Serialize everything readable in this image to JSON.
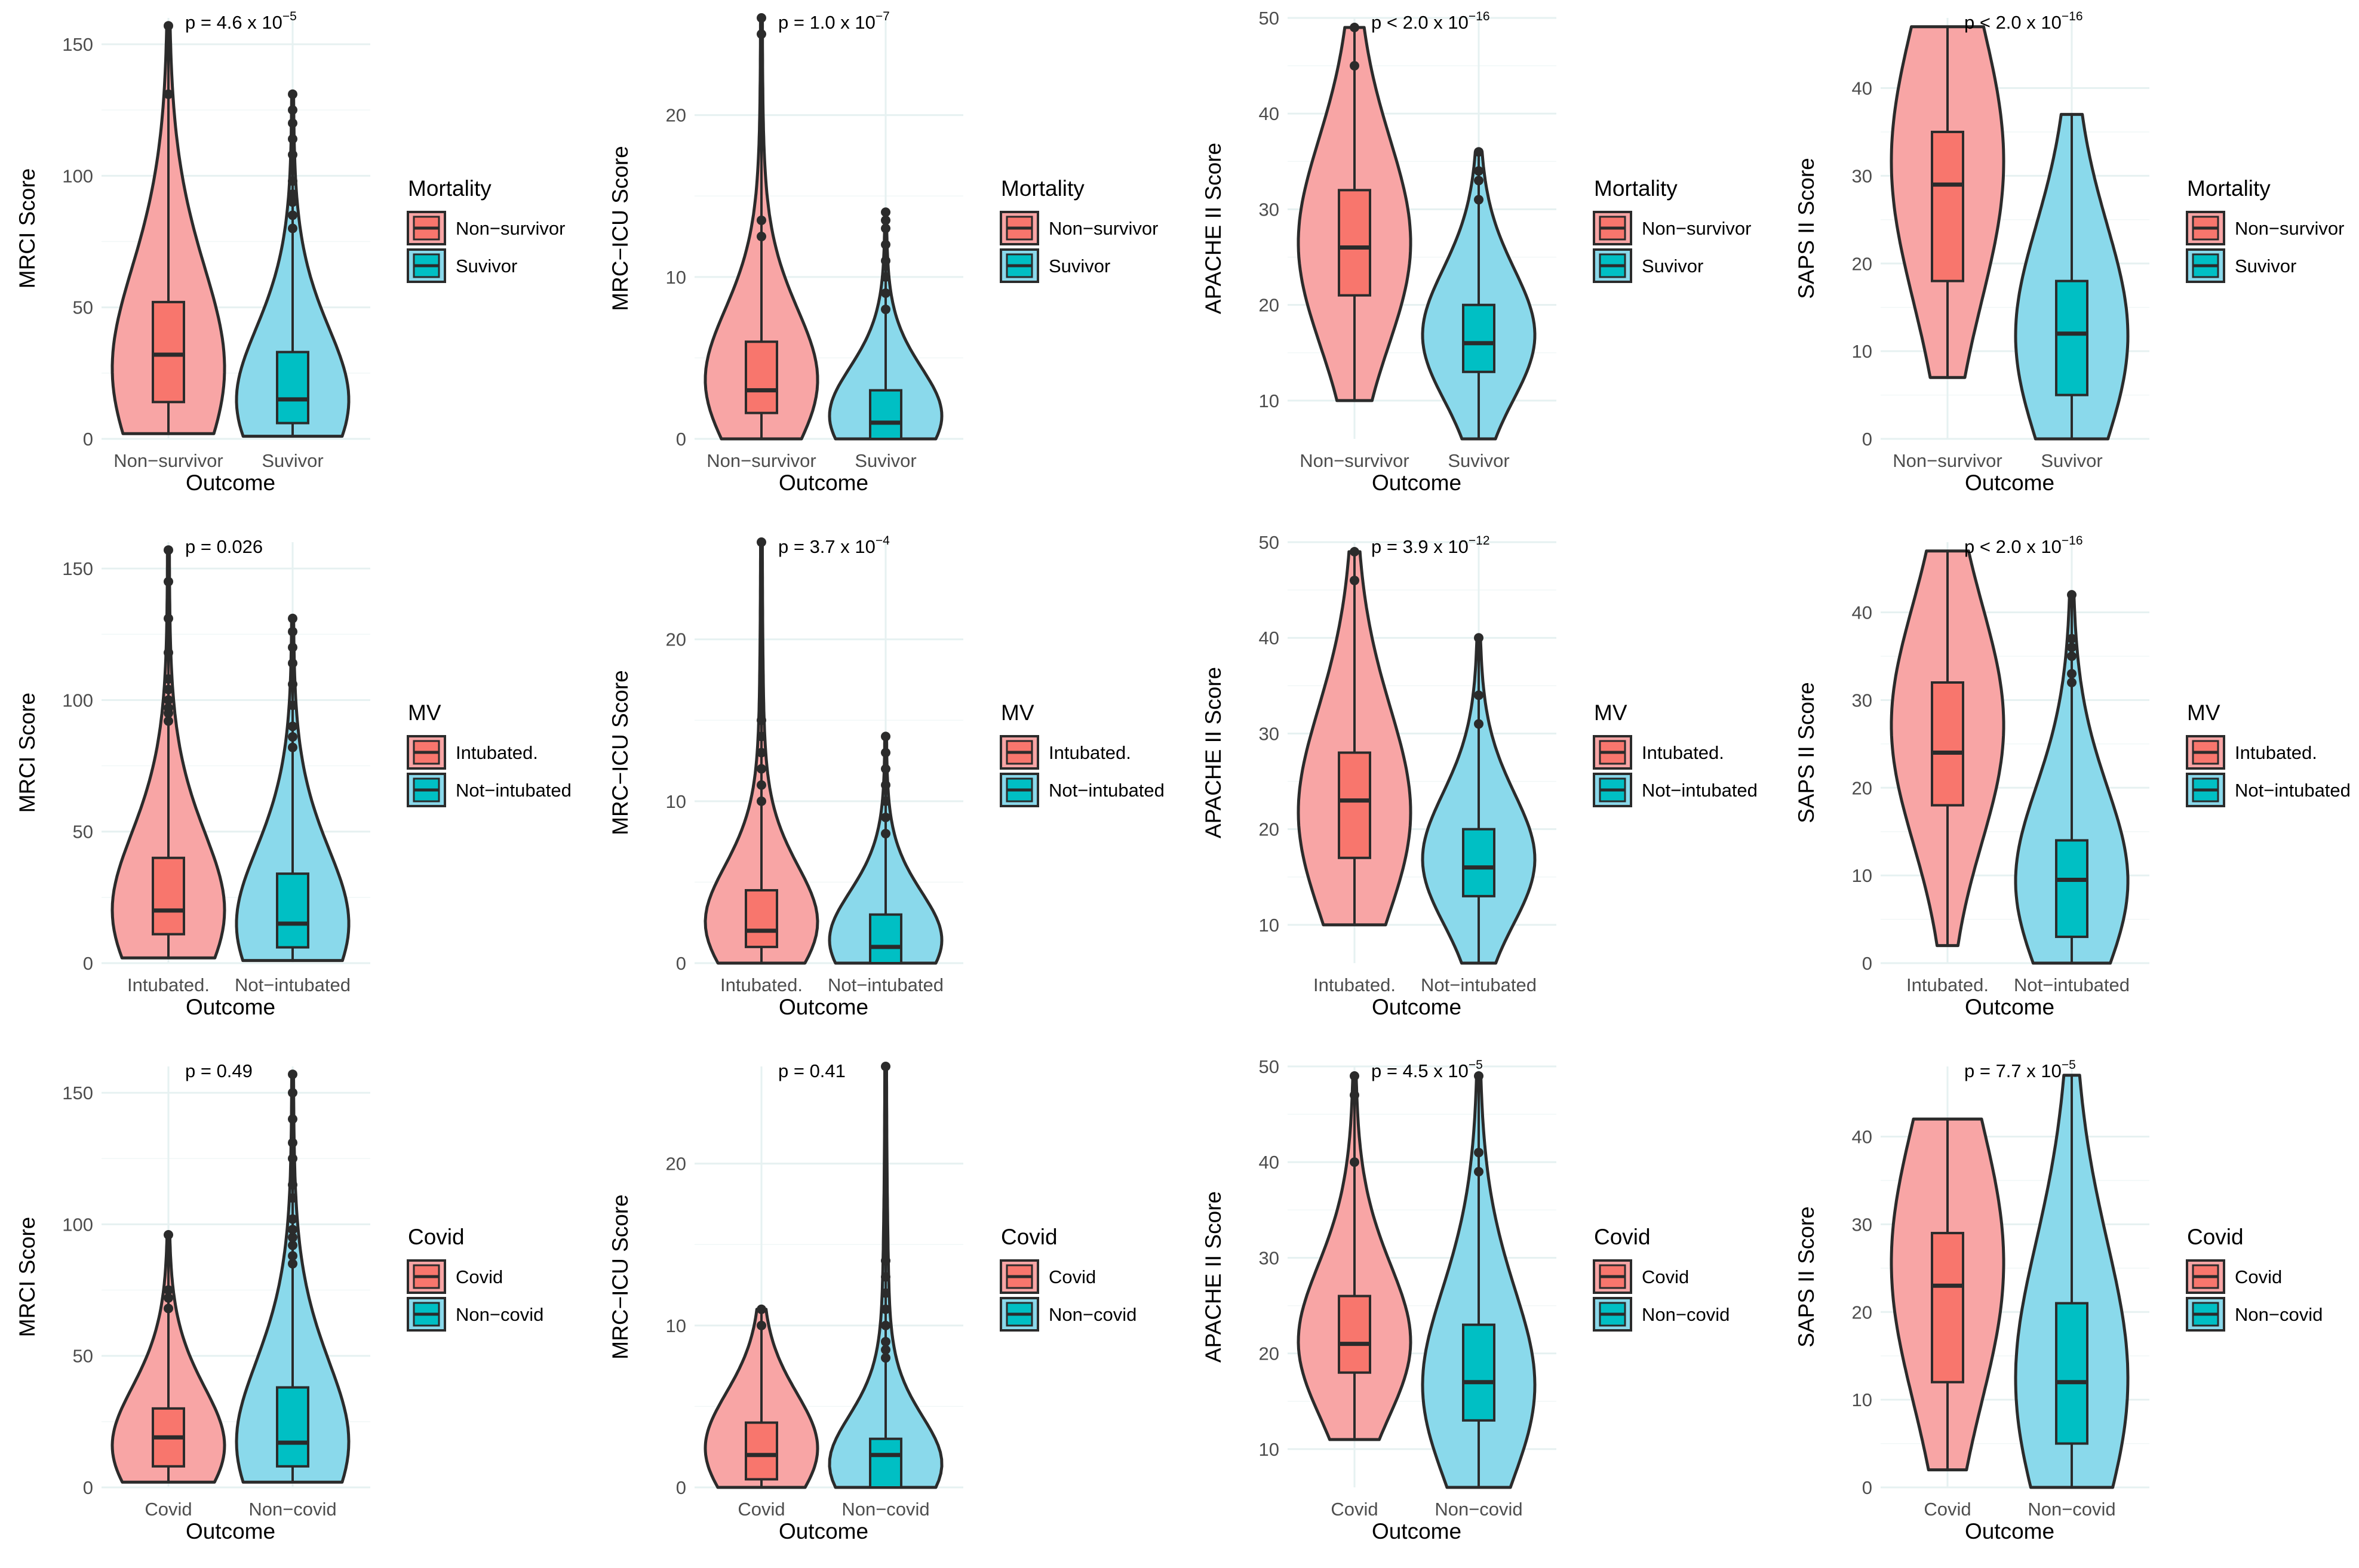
{
  "colors": {
    "group1_fill": "#f8a5a5",
    "group2_fill": "#8ad9eb",
    "group1_box": "#f8766d",
    "group2_box": "#00bfc4",
    "outline": "#2b2b2b"
  },
  "chart_data": [
    {
      "type": "violin",
      "ylabel": "MRCI Score",
      "xlabel": "Outcome",
      "categories": [
        "Non−survivor",
        "Suvivor"
      ],
      "ylim": [
        0,
        160
      ],
      "yticks": [
        "0",
        "50",
        "100",
        "150"
      ],
      "ytick_values": [
        0,
        50,
        100,
        150
      ],
      "pvalue_prefix": "p = 4.6 x 10",
      "pvalue_exponent": "−5",
      "legend_title": "Mortality",
      "legend_labels": [
        "Non−survivor",
        "Suvivor"
      ],
      "groups": [
        {
          "name": "Non−survivor",
          "min": 2,
          "q1": 14,
          "median": 32,
          "q3": 52,
          "max": 157,
          "mode": 20,
          "outliers": [
            131,
            157
          ]
        },
        {
          "name": "Suvivor",
          "min": 1,
          "q1": 6,
          "median": 15,
          "q3": 33,
          "max": 131,
          "mode": 10,
          "outliers": [
            80,
            85,
            90,
            93,
            98,
            108,
            114,
            120,
            125,
            131
          ]
        }
      ]
    },
    {
      "type": "violin",
      "ylabel": "MRC−ICU Score",
      "xlabel": "Outcome",
      "categories": [
        "Non−survivor",
        "Suvivor"
      ],
      "ylim": [
        0,
        26
      ],
      "yticks": [
        "0",
        "10",
        "20"
      ],
      "ytick_values": [
        0,
        10,
        20
      ],
      "pvalue_prefix": "p = 1.0 x 10",
      "pvalue_exponent": "−7",
      "legend_title": "Mortality",
      "legend_labels": [
        "Non−survivor",
        "Suvivor"
      ],
      "groups": [
        {
          "name": "Non−survivor",
          "min": 0,
          "q1": 1.6,
          "median": 3,
          "q3": 6,
          "max": 26,
          "mode": 3,
          "outliers": [
            12.5,
            13.5,
            25,
            26
          ]
        },
        {
          "name": "Suvivor",
          "min": 0,
          "q1": 0,
          "median": 1,
          "q3": 3,
          "max": 14,
          "mode": 1,
          "outliers": [
            8,
            9,
            10,
            11,
            12,
            13,
            13.5,
            14
          ]
        }
      ]
    },
    {
      "type": "violin",
      "ylabel": "APACHE II Score",
      "xlabel": "Outcome",
      "categories": [
        "Non−survivor",
        "Suvivor"
      ],
      "ylim": [
        6,
        50
      ],
      "yticks": [
        "10",
        "20",
        "30",
        "40",
        "50"
      ],
      "ytick_values": [
        10,
        20,
        30,
        40,
        50
      ],
      "pvalue_prefix": "p < 2.0 x 10",
      "pvalue_exponent": "−16",
      "legend_title": "Mortality",
      "legend_labels": [
        "Non−survivor",
        "Suvivor"
      ],
      "groups": [
        {
          "name": "Non−survivor",
          "min": 10,
          "q1": 21,
          "median": 26,
          "q3": 32,
          "max": 49,
          "mode": 25,
          "outliers": [
            45,
            49
          ]
        },
        {
          "name": "Suvivor",
          "min": 6,
          "q1": 13,
          "median": 16,
          "q3": 20,
          "max": 36,
          "mode": 16,
          "outliers": [
            31,
            33,
            34,
            36
          ]
        }
      ]
    },
    {
      "type": "violin",
      "ylabel": "SAPS II Score",
      "xlabel": "Outcome",
      "categories": [
        "Non−survivor",
        "Suvivor"
      ],
      "ylim": [
        0,
        48
      ],
      "yticks": [
        "0",
        "10",
        "20",
        "30",
        "40"
      ],
      "ytick_values": [
        0,
        10,
        20,
        30,
        40
      ],
      "pvalue_prefix": "p < 2.0 x 10",
      "pvalue_exponent": "−16",
      "legend_title": "Mortality",
      "legend_labels": [
        "Non−survivor",
        "Suvivor"
      ],
      "groups": [
        {
          "name": "Non−survivor",
          "min": 7,
          "q1": 18,
          "median": 29,
          "q3": 35,
          "max": 47,
          "mode": 31,
          "outliers": []
        },
        {
          "name": "Suvivor",
          "min": 0,
          "q1": 5,
          "median": 12,
          "q3": 18,
          "max": 37,
          "mode": 10,
          "outliers": []
        }
      ]
    },
    {
      "type": "violin",
      "ylabel": "MRCI Score",
      "xlabel": "Outcome",
      "categories": [
        "Intubated.",
        "Not−intubated"
      ],
      "ylim": [
        0,
        160
      ],
      "yticks": [
        "0",
        "50",
        "100",
        "150"
      ],
      "ytick_values": [
        0,
        50,
        100,
        150
      ],
      "pvalue_prefix": "p = 0.026",
      "pvalue_exponent": "",
      "legend_title": "MV",
      "legend_labels": [
        "Intubated.",
        "Not−intubated"
      ],
      "groups": [
        {
          "name": "Intubated.",
          "min": 2,
          "q1": 11,
          "median": 20,
          "q3": 40,
          "max": 157,
          "mode": 15,
          "outliers": [
            92,
            95,
            97,
            100,
            104,
            108,
            118,
            131,
            145,
            157
          ]
        },
        {
          "name": "Not−intubated",
          "min": 1,
          "q1": 6,
          "median": 15,
          "q3": 34,
          "max": 131,
          "mode": 10,
          "outliers": [
            82,
            86,
            90,
            98,
            106,
            114,
            120,
            126,
            131
          ]
        }
      ]
    },
    {
      "type": "violin",
      "ylabel": "MRC−ICU Score",
      "xlabel": "Outcome",
      "categories": [
        "Intubated.",
        "Not−intubated"
      ],
      "ylim": [
        0,
        26
      ],
      "yticks": [
        "0",
        "10",
        "20"
      ],
      "ytick_values": [
        0,
        10,
        20
      ],
      "pvalue_prefix": "p = 3.7 x 10",
      "pvalue_exponent": "−4",
      "legend_title": "MV",
      "legend_labels": [
        "Intubated.",
        "Not−intubated"
      ],
      "groups": [
        {
          "name": "Intubated.",
          "min": 0,
          "q1": 1,
          "median": 2,
          "q3": 4.5,
          "max": 26,
          "mode": 2,
          "outliers": [
            10,
            11,
            12,
            13,
            14,
            15,
            26
          ]
        },
        {
          "name": "Not−intubated",
          "min": 0,
          "q1": 0,
          "median": 1,
          "q3": 3,
          "max": 14,
          "mode": 1,
          "outliers": [
            8,
            9,
            10,
            11,
            12,
            13,
            14
          ]
        }
      ]
    },
    {
      "type": "violin",
      "ylabel": "APACHE II Score",
      "xlabel": "Outcome",
      "categories": [
        "Intubated.",
        "Not−intubated"
      ],
      "ylim": [
        6,
        50
      ],
      "yticks": [
        "10",
        "20",
        "30",
        "40",
        "50"
      ],
      "ytick_values": [
        10,
        20,
        30,
        40,
        50
      ],
      "pvalue_prefix": "p = 3.9 x 10",
      "pvalue_exponent": "−12",
      "legend_title": "MV",
      "legend_labels": [
        "Intubated.",
        "Not−intubated"
      ],
      "groups": [
        {
          "name": "Intubated.",
          "min": 10,
          "q1": 17,
          "median": 23,
          "q3": 28,
          "max": 49,
          "mode": 20,
          "outliers": [
            46,
            49
          ]
        },
        {
          "name": "Not−intubated",
          "min": 6,
          "q1": 13,
          "median": 16,
          "q3": 20,
          "max": 40,
          "mode": 16,
          "outliers": [
            31,
            34,
            40
          ]
        }
      ]
    },
    {
      "type": "violin",
      "ylabel": "SAPS II Score",
      "xlabel": "Outcome",
      "categories": [
        "Intubated.",
        "Not−intubated"
      ],
      "ylim": [
        0,
        48
      ],
      "yticks": [
        "0",
        "10",
        "20",
        "30",
        "40"
      ],
      "ytick_values": [
        0,
        10,
        20,
        30,
        40
      ],
      "pvalue_prefix": "p < 2.0 x 10",
      "pvalue_exponent": "−16",
      "legend_title": "MV",
      "legend_labels": [
        "Intubated.",
        "Not−intubated"
      ],
      "groups": [
        {
          "name": "Intubated.",
          "min": 2,
          "q1": 18,
          "median": 24,
          "q3": 32,
          "max": 47,
          "mode": 26,
          "outliers": []
        },
        {
          "name": "Not−intubated",
          "min": 0,
          "q1": 3,
          "median": 9.5,
          "q3": 14,
          "max": 42,
          "mode": 8,
          "outliers": [
            32,
            33,
            35,
            36,
            37,
            42
          ]
        }
      ]
    },
    {
      "type": "violin",
      "ylabel": "MRCI Score",
      "xlabel": "Outcome",
      "categories": [
        "Covid",
        "Non−covid"
      ],
      "ylim": [
        0,
        160
      ],
      "yticks": [
        "0",
        "50",
        "100",
        "150"
      ],
      "ytick_values": [
        0,
        50,
        100,
        150
      ],
      "pvalue_prefix": "p = 0.49",
      "pvalue_exponent": "",
      "legend_title": "Covid",
      "legend_labels": [
        "Covid",
        "Non−covid"
      ],
      "groups": [
        {
          "name": "Covid",
          "min": 2,
          "q1": 8,
          "median": 19,
          "q3": 30,
          "max": 96,
          "mode": 12,
          "outliers": [
            68,
            72,
            75,
            96
          ]
        },
        {
          "name": "Non−covid",
          "min": 2,
          "q1": 8,
          "median": 17,
          "q3": 38,
          "max": 157,
          "mode": 12,
          "outliers": [
            85,
            88,
            92,
            95,
            98,
            102,
            110,
            115,
            125,
            131,
            140,
            150,
            157
          ]
        }
      ]
    },
    {
      "type": "violin",
      "ylabel": "MRC−ICU Score",
      "xlabel": "Outcome",
      "categories": [
        "Covid",
        "Non−covid"
      ],
      "ylim": [
        0,
        26
      ],
      "yticks": [
        "0",
        "10",
        "20"
      ],
      "ytick_values": [
        0,
        10,
        20
      ],
      "pvalue_prefix": "p = 0.41",
      "pvalue_exponent": "",
      "legend_title": "Covid",
      "legend_labels": [
        "Covid",
        "Non−covid"
      ],
      "groups": [
        {
          "name": "Covid",
          "min": 0,
          "q1": 0.5,
          "median": 2,
          "q3": 4,
          "max": 11,
          "mode": 2,
          "outliers": [
            10,
            11
          ]
        },
        {
          "name": "Non−covid",
          "min": 0,
          "q1": 0,
          "median": 2,
          "q3": 3,
          "max": 26,
          "mode": 1,
          "outliers": [
            8,
            8.5,
            9,
            10,
            11,
            12,
            13,
            14,
            26
          ]
        }
      ]
    },
    {
      "type": "violin",
      "ylabel": "APACHE II Score",
      "xlabel": "Outcome",
      "categories": [
        "Covid",
        "Non−covid"
      ],
      "ylim": [
        6,
        50
      ],
      "yticks": [
        "10",
        "20",
        "30",
        "40",
        "50"
      ],
      "ytick_values": [
        10,
        20,
        30,
        40,
        50
      ],
      "pvalue_prefix": "p = 4.5 x 10",
      "pvalue_exponent": "−5",
      "legend_title": "Covid",
      "legend_labels": [
        "Covid",
        "Non−covid"
      ],
      "groups": [
        {
          "name": "Covid",
          "min": 11,
          "q1": 18,
          "median": 21,
          "q3": 26,
          "max": 49,
          "mode": 20,
          "outliers": [
            40,
            47,
            49
          ]
        },
        {
          "name": "Non−covid",
          "min": 6,
          "q1": 13,
          "median": 17,
          "q3": 23,
          "max": 49,
          "mode": 15,
          "outliers": [
            39,
            41,
            49
          ]
        }
      ]
    },
    {
      "type": "violin",
      "ylabel": "SAPS II Score",
      "xlabel": "Outcome",
      "categories": [
        "Covid",
        "Non−covid"
      ],
      "ylim": [
        0,
        48
      ],
      "yticks": [
        "0",
        "10",
        "20",
        "30",
        "40"
      ],
      "ytick_values": [
        0,
        10,
        20,
        30,
        40
      ],
      "pvalue_prefix": "p = 7.7 x 10",
      "pvalue_exponent": "−5",
      "legend_title": "Covid",
      "legend_labels": [
        "Covid",
        "Non−covid"
      ],
      "groups": [
        {
          "name": "Covid",
          "min": 2,
          "q1": 12,
          "median": 23,
          "q3": 29,
          "max": 42,
          "mode": 25,
          "outliers": []
        },
        {
          "name": "Non−covid",
          "min": 0,
          "q1": 5,
          "median": 12,
          "q3": 21,
          "max": 47,
          "mode": 10,
          "outliers": []
        }
      ]
    }
  ]
}
